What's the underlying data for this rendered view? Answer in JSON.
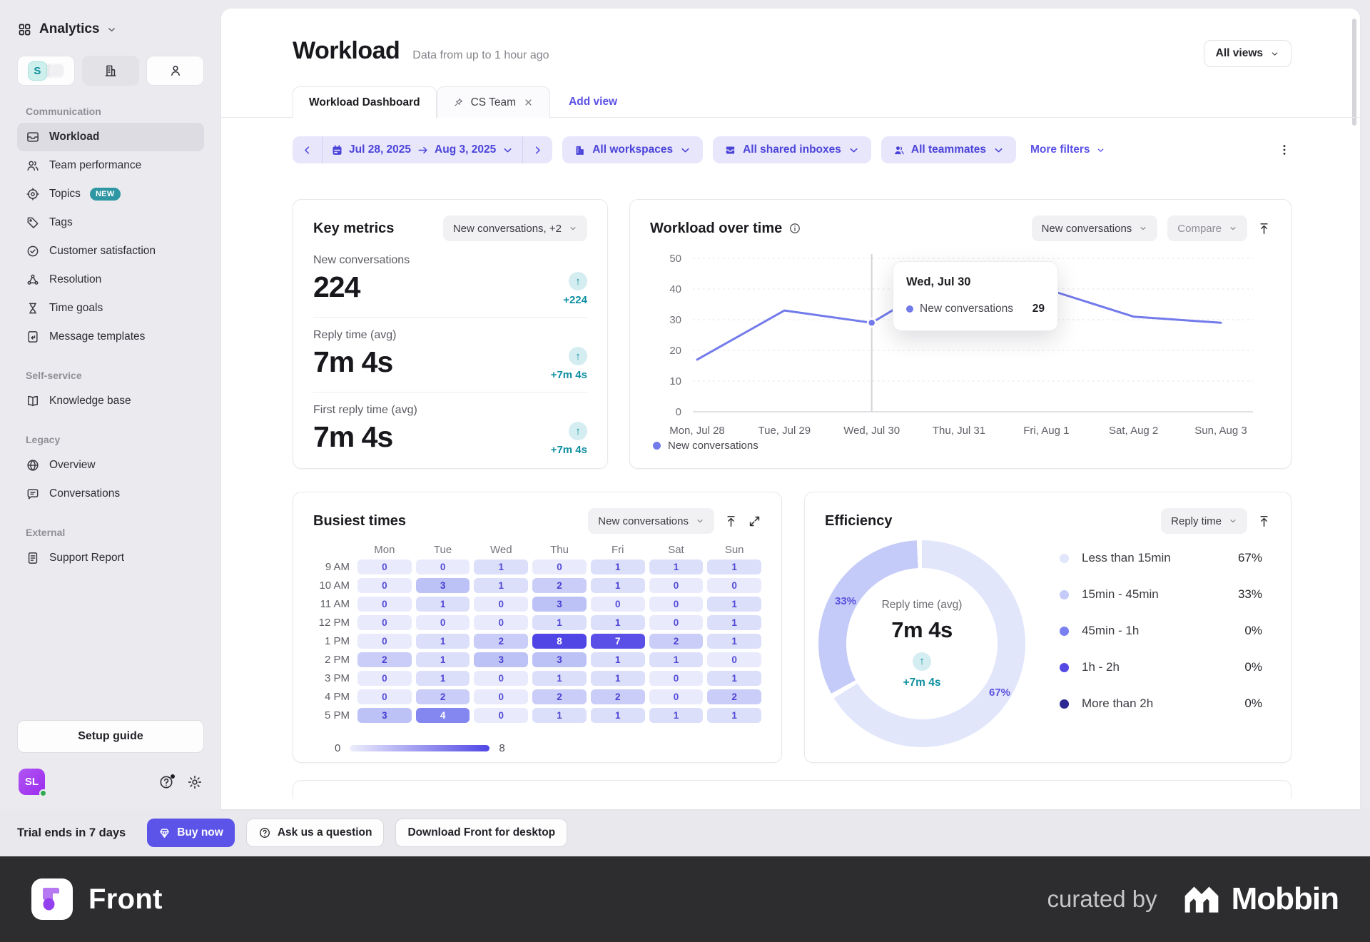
{
  "colors": {
    "accent": "#4f46e5",
    "filter_pill_bg": "#e7e6fb",
    "filter_text": "#4c44d9",
    "teal": "#0e8fa0",
    "line": "#737bea"
  },
  "sidebar": {
    "workspace": "Analytics",
    "toggle_badge": "S",
    "sections": [
      {
        "title": "Communication",
        "items": [
          {
            "label": "Workload",
            "icon": "inbox-icon",
            "active": true
          },
          {
            "label": "Team performance",
            "icon": "users-icon"
          },
          {
            "label": "Topics",
            "icon": "target-icon",
            "badge": "NEW"
          },
          {
            "label": "Tags",
            "icon": "tag-icon"
          },
          {
            "label": "Customer satisfaction",
            "icon": "badge-check-icon"
          },
          {
            "label": "Resolution",
            "icon": "nodes-icon"
          },
          {
            "label": "Time goals",
            "icon": "hourglass-icon"
          },
          {
            "label": "Message templates",
            "icon": "template-icon"
          }
        ]
      },
      {
        "title": "Self-service",
        "items": [
          {
            "label": "Knowledge base",
            "icon": "book-icon"
          }
        ]
      },
      {
        "title": "Legacy",
        "items": [
          {
            "label": "Overview",
            "icon": "globe-icon"
          },
          {
            "label": "Conversations",
            "icon": "chat-icon"
          }
        ]
      },
      {
        "title": "External",
        "items": [
          {
            "label": "Support Report",
            "icon": "report-icon"
          }
        ]
      }
    ],
    "setup_guide_label": "Setup guide",
    "avatar_initials": "SL"
  },
  "header": {
    "title": "Workload",
    "subtitle": "Data from up to 1 hour ago",
    "all_views_label": "All views",
    "tabs": [
      {
        "label": "Workload Dashboard",
        "active": true
      },
      {
        "label": "CS Team",
        "pinned": true,
        "closable": true
      }
    ],
    "add_view_label": "Add view"
  },
  "filters": {
    "date_start": "Jul 28, 2025",
    "date_end": "Aug 3, 2025",
    "workspaces": "All workspaces",
    "inboxes": "All shared inboxes",
    "teammates": "All teammates",
    "more_filters": "More filters"
  },
  "key_metrics": {
    "title": "Key metrics",
    "selector": "New conversations, +2",
    "metrics": [
      {
        "label": "New conversations",
        "value": "224",
        "delta": "+224"
      },
      {
        "label": "Reply time (avg)",
        "value": "7m 4s",
        "delta": "+7m 4s"
      },
      {
        "label": "First reply time (avg)",
        "value": "7m 4s",
        "delta": "+7m 4s"
      }
    ]
  },
  "chart_data": [
    {
      "type": "line",
      "title": "Workload over time",
      "selector": "New conversations",
      "compare_label": "Compare",
      "x": [
        "Mon, Jul 28",
        "Tue, Jul 29",
        "Wed, Jul 30",
        "Thu, Jul 31",
        "Fri, Aug 1",
        "Sat, Aug 2",
        "Sun, Aug 3"
      ],
      "series": [
        {
          "name": "New conversations",
          "values": [
            17,
            33,
            29,
            46,
            40,
            31,
            29
          ]
        }
      ],
      "ylim": [
        0,
        50
      ],
      "yticks": [
        0,
        10,
        20,
        30,
        40,
        50
      ],
      "grid": true,
      "legend_position": "bottom",
      "line_color": "#737bea",
      "tooltip": {
        "index": 2,
        "title": "Wed, Jul 30",
        "series": "New conversations",
        "value": 29
      }
    },
    {
      "type": "heatmap",
      "title": "Busiest times",
      "selector": "New conversations",
      "columns": [
        "Mon",
        "Tue",
        "Wed",
        "Thu",
        "Fri",
        "Sat",
        "Sun"
      ],
      "rows": [
        "9 AM",
        "10 AM",
        "11 AM",
        "12 PM",
        "1 PM",
        "2 PM",
        "3 PM",
        "4 PM",
        "5 PM"
      ],
      "values": [
        [
          0,
          0,
          1,
          0,
          1,
          1,
          1
        ],
        [
          0,
          3,
          1,
          2,
          1,
          0,
          0
        ],
        [
          0,
          1,
          0,
          3,
          0,
          0,
          1
        ],
        [
          0,
          0,
          0,
          1,
          1,
          0,
          1
        ],
        [
          0,
          1,
          2,
          8,
          7,
          2,
          1
        ],
        [
          2,
          1,
          3,
          3,
          1,
          1,
          0
        ],
        [
          0,
          1,
          0,
          1,
          1,
          0,
          1
        ],
        [
          0,
          2,
          0,
          2,
          2,
          0,
          2
        ],
        [
          3,
          4,
          0,
          1,
          1,
          1,
          1
        ]
      ],
      "scale": {
        "min": 0,
        "max": 8
      }
    },
    {
      "type": "donut",
      "title": "Efficiency",
      "selector": "Reply time",
      "center": {
        "label": "Reply time (avg)",
        "value": "7m 4s",
        "delta": "+7m 4s"
      },
      "donut_labels": [
        "33%",
        "67%"
      ],
      "segments": [
        {
          "label": "Less than 15min",
          "pct": 67,
          "color": "#e2e6fb"
        },
        {
          "label": "15min - 45min",
          "pct": 33,
          "color": "#c4cbf8"
        },
        {
          "label": "45min - 1h",
          "pct": 0,
          "color": "#7b80f0"
        },
        {
          "label": "1h - 2h",
          "pct": 0,
          "color": "#5549e4"
        },
        {
          "label": "More than 2h",
          "pct": 0,
          "color": "#2c2a90"
        }
      ]
    }
  ],
  "trial_bar": {
    "text": "Trial ends in 7 days",
    "buy_label": "Buy now",
    "ask_label": "Ask us a question",
    "download_label": "Download Front for desktop"
  },
  "footer": {
    "brand": "Front",
    "curated": "curated by",
    "mobbin": "Mobbin"
  }
}
